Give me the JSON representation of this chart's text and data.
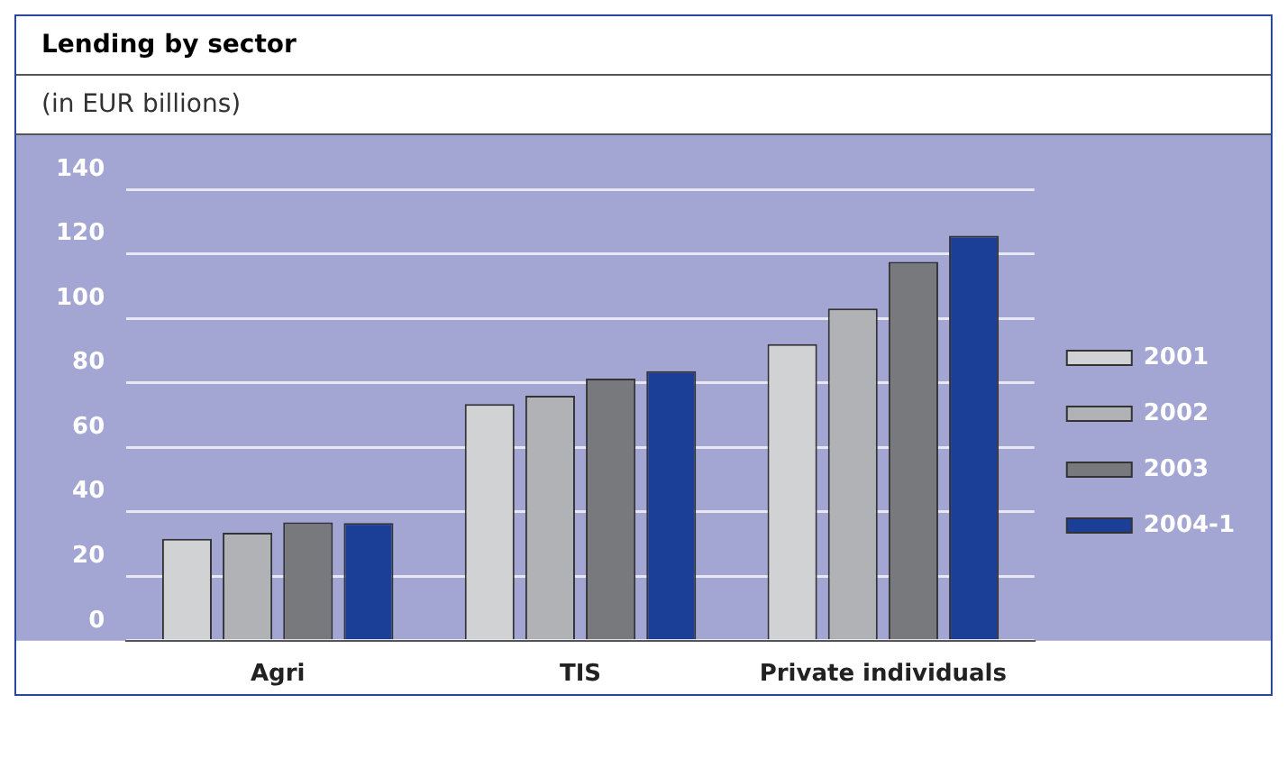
{
  "chart_data": {
    "type": "bar",
    "title": "Lending by sector",
    "subtitle": "(in EUR billions)",
    "categories": [
      "Agri",
      "TIS",
      "Private individuals"
    ],
    "series": [
      {
        "name": "2001",
        "color": "#d1d2d4",
        "values": [
          31.6,
          73.4,
          92
        ]
      },
      {
        "name": "2002",
        "color": "#b1b2b5",
        "values": [
          33.5,
          76,
          103
        ]
      },
      {
        "name": "2003",
        "color": "#78797d",
        "values": [
          36.7,
          81.3,
          117.5
        ]
      },
      {
        "name": "2004-1",
        "color": "#1b3f97",
        "values": [
          36.5,
          83.6,
          125.6
        ]
      }
    ],
    "ylim": [
      0,
      140
    ],
    "yticks": [
      0,
      20,
      40,
      60,
      80,
      100,
      120,
      140
    ],
    "grid": "y",
    "legend": "right"
  }
}
